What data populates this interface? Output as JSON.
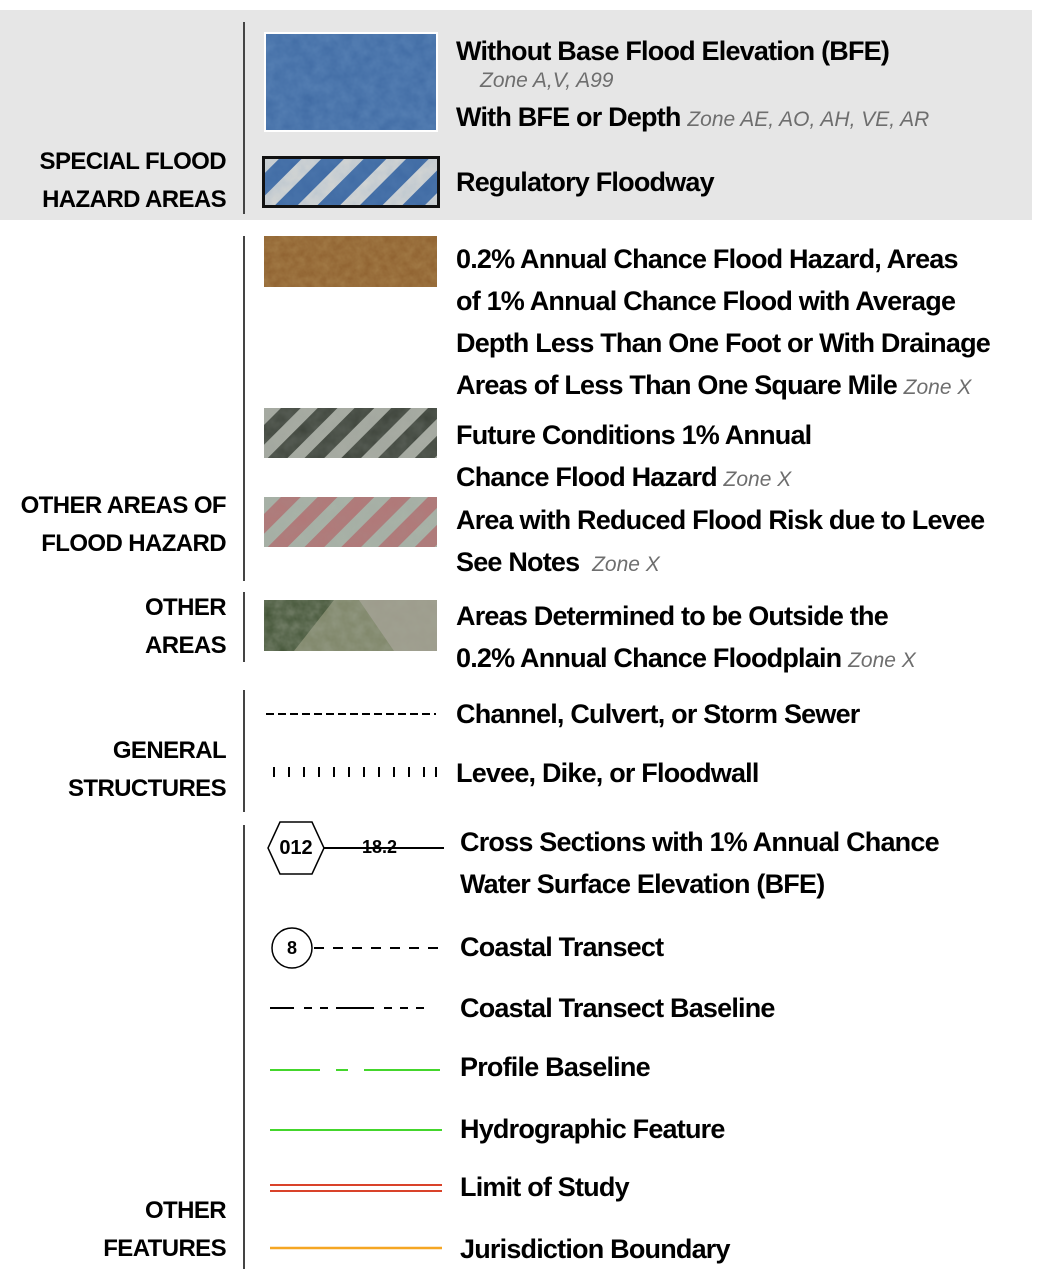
{
  "categories": {
    "special_flood_hazard_areas": [
      "SPECIAL FLOOD",
      "HAZARD AREAS"
    ],
    "other_areas_of_flood_hazard": [
      "OTHER AREAS OF",
      "FLOOD HAZARD"
    ],
    "other_areas": [
      "OTHER",
      "AREAS"
    ],
    "general_structures": [
      "GENERAL",
      "STRUCTURES"
    ],
    "other_features": [
      "OTHER",
      "FEATURES"
    ]
  },
  "legend": {
    "sfha": {
      "without_bfe": "Without Base Flood Elevation (BFE)",
      "without_bfe_zone": "Zone A,V, A99",
      "with_bfe": "With BFE or Depth",
      "with_bfe_zone": "Zone AE, AO, AH, VE, AR",
      "floodway": "Regulatory Floodway"
    },
    "other_flood_hazard": {
      "zone_x_shaded_lines": [
        "0.2% Annual Chance Flood Hazard, Areas",
        "of 1% Annual Chance Flood with Average",
        "Depth Less Than One Foot or With Drainage",
        "Areas of Less Than One Square Mile"
      ],
      "zone_x_shaded_zone": "Zone X",
      "future_conditions_lines": [
        "Future Conditions 1% Annual",
        "Chance Flood Hazard"
      ],
      "future_conditions_zone": "Zone X",
      "levee_lines": [
        "Area with Reduced Flood Risk due to Levee",
        "See Notes"
      ],
      "levee_zone": "Zone X"
    },
    "other_areas": {
      "outside_lines": [
        "Areas Determined to be Outside the",
        "0.2% Annual Chance Floodplain"
      ],
      "outside_zone": "Zone X"
    },
    "general_structures": {
      "channel": "Channel, Culvert, or Storm Sewer",
      "levee": "Levee, Dike, or Floodwall"
    },
    "other_features": {
      "cross_section_id": "012",
      "cross_section_bfe": "18.2",
      "cross_sections_lines": [
        "Cross Sections with 1% Annual Chance",
        "Water Surface Elevation (BFE)"
      ],
      "transect_number": "8",
      "coastal_transect": "Coastal Transect",
      "coastal_transect_baseline": "Coastal Transect Baseline",
      "profile_baseline": "Profile Baseline",
      "hydrographic_feature": "Hydrographic Feature",
      "limit_of_study": "Limit of Study",
      "jurisdiction_boundary": "Jurisdiction Boundary"
    }
  },
  "colors": {
    "sfha_band": "#e6e6e6",
    "flood_blue": "#3a5f96",
    "zone_x_brown": "#8a5a2a",
    "profile_green": "#44d62c",
    "limit_red": "#d9432a",
    "jurisdiction_orange": "#f5a623"
  }
}
